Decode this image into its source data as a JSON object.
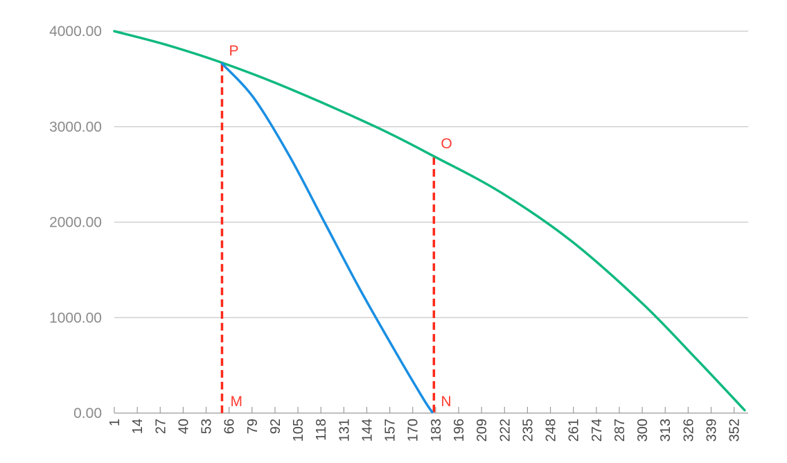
{
  "chart_data": {
    "type": "line",
    "title": "",
    "xlabel": "",
    "ylabel": "",
    "xlim": [
      1,
      360
    ],
    "ylim": [
      0,
      4000
    ],
    "grid": true,
    "y_ticks": [
      {
        "value": 0,
        "label": "0.00"
      },
      {
        "value": 1000,
        "label": "1000.00"
      },
      {
        "value": 2000,
        "label": "2000.00"
      },
      {
        "value": 3000,
        "label": "3000.00"
      },
      {
        "value": 4000,
        "label": "4000.00"
      }
    ],
    "x_ticks": [
      {
        "value": 1,
        "label": "1"
      },
      {
        "value": 14,
        "label": "14"
      },
      {
        "value": 27,
        "label": "27"
      },
      {
        "value": 40,
        "label": "40"
      },
      {
        "value": 53,
        "label": "53"
      },
      {
        "value": 66,
        "label": "66"
      },
      {
        "value": 79,
        "label": "79"
      },
      {
        "value": 92,
        "label": "92"
      },
      {
        "value": 105,
        "label": "105"
      },
      {
        "value": 118,
        "label": "118"
      },
      {
        "value": 131,
        "label": "131"
      },
      {
        "value": 144,
        "label": "144"
      },
      {
        "value": 157,
        "label": "157"
      },
      {
        "value": 170,
        "label": "170"
      },
      {
        "value": 183,
        "label": "183"
      },
      {
        "value": 196,
        "label": "196"
      },
      {
        "value": 209,
        "label": "209"
      },
      {
        "value": 222,
        "label": "222"
      },
      {
        "value": 235,
        "label": "235"
      },
      {
        "value": 248,
        "label": "248"
      },
      {
        "value": 261,
        "label": "261"
      },
      {
        "value": 274,
        "label": "274"
      },
      {
        "value": 287,
        "label": "287"
      },
      {
        "value": 300,
        "label": "300"
      },
      {
        "value": 313,
        "label": "313"
      },
      {
        "value": 326,
        "label": "326"
      },
      {
        "value": 339,
        "label": "339"
      },
      {
        "value": 352,
        "label": "352"
      }
    ],
    "series": [
      {
        "color": "#10b981",
        "points": [
          {
            "x": 1,
            "y": 4000
          },
          {
            "x": 30,
            "y": 3860
          },
          {
            "x": 62,
            "y": 3670
          },
          {
            "x": 100,
            "y": 3400
          },
          {
            "x": 150,
            "y": 2990
          },
          {
            "x": 183,
            "y": 2680
          },
          {
            "x": 220,
            "y": 2310
          },
          {
            "x": 260,
            "y": 1800
          },
          {
            "x": 300,
            "y": 1150
          },
          {
            "x": 330,
            "y": 580
          },
          {
            "x": 358,
            "y": 30
          }
        ]
      },
      {
        "color": "#1a8fe3",
        "points": [
          {
            "x": 62,
            "y": 3660
          },
          {
            "x": 80,
            "y": 3300
          },
          {
            "x": 100,
            "y": 2700
          },
          {
            "x": 120,
            "y": 2000
          },
          {
            "x": 140,
            "y": 1300
          },
          {
            "x": 160,
            "y": 650
          },
          {
            "x": 176,
            "y": 150
          },
          {
            "x": 181,
            "y": 10
          }
        ]
      }
    ],
    "reference_lines": [
      {
        "x": 62,
        "y_from": 0,
        "y_to": 3660,
        "color": "#ff2a1a",
        "style": "dashed"
      },
      {
        "x": 182,
        "y_from": 0,
        "y_to": 2680,
        "color": "#ff2a1a",
        "style": "dashed"
      }
    ],
    "annotations": [
      {
        "text": "P",
        "x": 62,
        "y": 3660,
        "color": "#ff3b30"
      },
      {
        "text": "O",
        "x": 182,
        "y": 2680,
        "color": "#ff3b30"
      },
      {
        "text": "M",
        "x": 62,
        "y": 0,
        "color": "#ff3b30"
      },
      {
        "text": "N",
        "x": 182,
        "y": 0,
        "color": "#ff3b30"
      }
    ]
  }
}
